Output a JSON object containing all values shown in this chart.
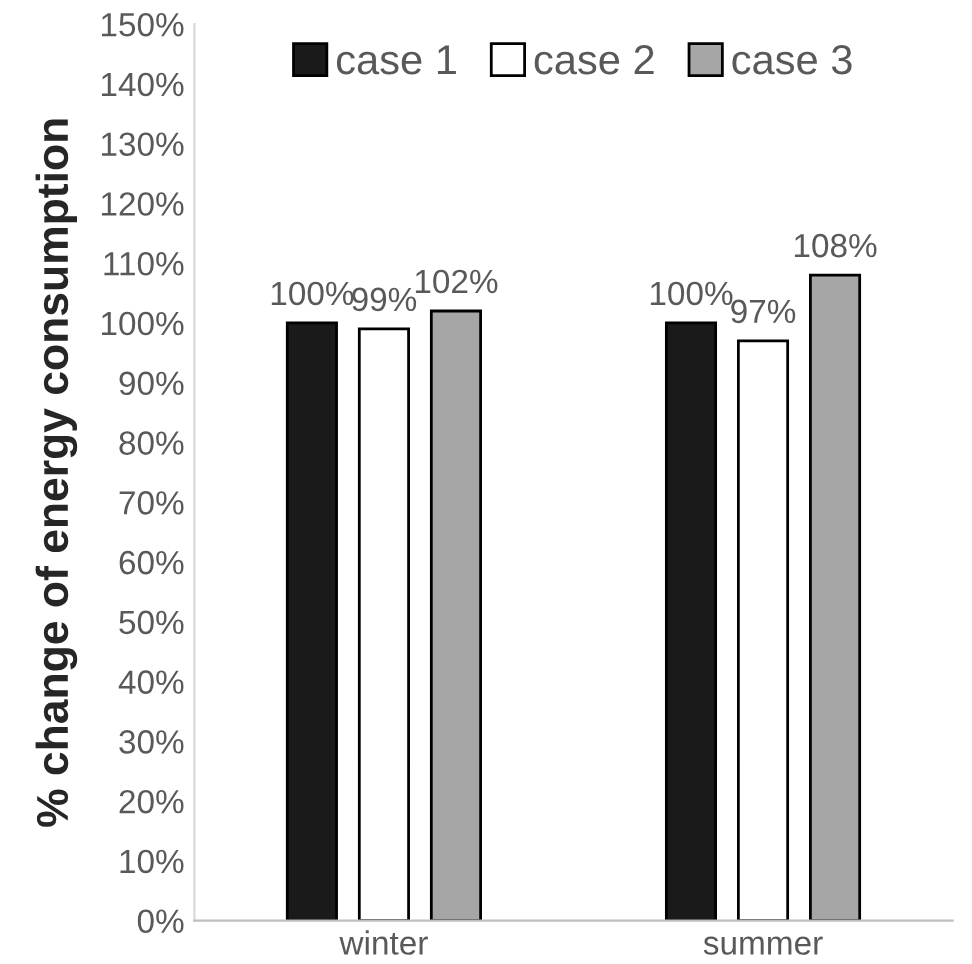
{
  "chart_data": {
    "type": "bar",
    "ylabel": "% change of energy consumption",
    "categories": [
      "winter",
      "summer"
    ],
    "series": [
      {
        "name": "case 1",
        "color": "#1a1a1a",
        "values": [
          100,
          100
        ],
        "value_labels": [
          "100%",
          "100%"
        ]
      },
      {
        "name": "case 2",
        "color": "#ffffff",
        "values": [
          99,
          97
        ],
        "value_labels": [
          "99%",
          "97%"
        ]
      },
      {
        "name": "case 3",
        "color": "#a6a6a6",
        "values": [
          102,
          108
        ],
        "value_labels": [
          "102%",
          "108%"
        ]
      }
    ],
    "ylim": [
      0,
      150
    ],
    "yticks": [
      {
        "value": 0,
        "label": "0%"
      },
      {
        "value": 10,
        "label": "10%"
      },
      {
        "value": 20,
        "label": "20%"
      },
      {
        "value": 30,
        "label": "30%"
      },
      {
        "value": 40,
        "label": "40%"
      },
      {
        "value": 50,
        "label": "50%"
      },
      {
        "value": 60,
        "label": "60%"
      },
      {
        "value": 70,
        "label": "70%"
      },
      {
        "value": 80,
        "label": "80%"
      },
      {
        "value": 90,
        "label": "90%"
      },
      {
        "value": 100,
        "label": "100%"
      },
      {
        "value": 110,
        "label": "110%"
      },
      {
        "value": 120,
        "label": "120%"
      },
      {
        "value": 130,
        "label": "130%"
      },
      {
        "value": 140,
        "label": "140%"
      },
      {
        "value": 150,
        "label": "150%"
      }
    ],
    "grid": false,
    "legend": "top"
  }
}
